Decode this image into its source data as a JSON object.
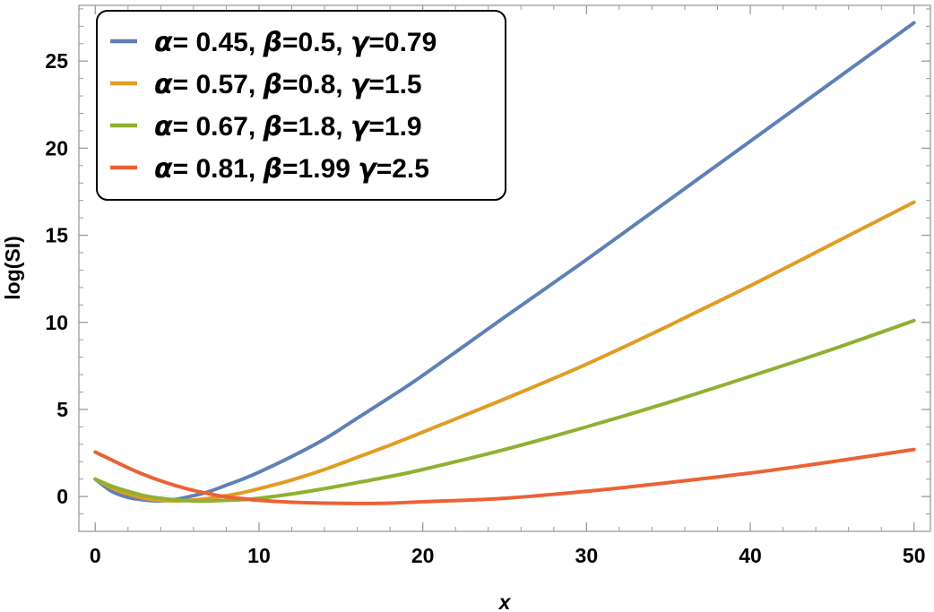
{
  "chart_data": {
    "type": "line",
    "title": "",
    "xlabel": "x",
    "ylabel": "log(SI)",
    "xlim": [
      -1,
      51
    ],
    "ylim": [
      -2,
      28.2
    ],
    "x_ticks": [
      0,
      10,
      20,
      30,
      40,
      50
    ],
    "x_tick_labels": [
      "0",
      "10",
      "20",
      "30",
      "40",
      "50"
    ],
    "y_ticks": [
      0,
      5,
      10,
      15,
      20,
      25
    ],
    "y_tick_labels": [
      "0",
      "5",
      "10",
      "15",
      "20",
      "25"
    ],
    "grid": false,
    "legend_position": "top-left",
    "x": [
      0,
      1,
      2,
      3,
      4,
      5,
      6,
      7,
      8,
      9,
      10,
      12,
      14,
      16,
      18,
      20,
      25,
      30,
      35,
      40,
      45,
      50
    ],
    "series": [
      {
        "name_parts": [
          "α",
          "= 0.45, ",
          "β",
          "=0.5, ",
          "γ",
          "=0.79"
        ],
        "color": "#5E81B5",
        "values": [
          1.0,
          0.3,
          -0.05,
          -0.2,
          -0.25,
          -0.15,
          0.05,
          0.3,
          0.65,
          1.0,
          1.4,
          2.3,
          3.3,
          4.5,
          5.7,
          6.95,
          10.3,
          13.6,
          17.0,
          20.4,
          23.8,
          27.2
        ]
      },
      {
        "name_parts": [
          "α",
          "= 0.57, ",
          "β",
          "=0.8, ",
          "γ",
          "=1.5"
        ],
        "color": "#E19C24",
        "values": [
          1.0,
          0.5,
          0.15,
          -0.1,
          -0.22,
          -0.25,
          -0.2,
          -0.1,
          0.05,
          0.22,
          0.45,
          0.95,
          1.55,
          2.25,
          2.95,
          3.7,
          5.6,
          7.6,
          9.8,
          12.1,
          14.5,
          16.9
        ]
      },
      {
        "name_parts": [
          "α",
          "= 0.67, ",
          "β",
          "=1.8, ",
          "γ",
          "=1.9"
        ],
        "color": "#8FB032",
        "values": [
          1.0,
          0.6,
          0.3,
          0.05,
          -0.1,
          -0.2,
          -0.25,
          -0.25,
          -0.22,
          -0.18,
          -0.1,
          0.15,
          0.45,
          0.8,
          1.15,
          1.55,
          2.7,
          4.0,
          5.4,
          6.9,
          8.45,
          10.1
        ]
      },
      {
        "name_parts": [
          "α",
          "= 0.81, ",
          "β",
          "=1.99 ",
          "γ",
          "=2.5"
        ],
        "color": "#EB6235",
        "values": [
          2.55,
          2.1,
          1.65,
          1.25,
          0.9,
          0.6,
          0.35,
          0.15,
          -0.02,
          -0.12,
          -0.22,
          -0.33,
          -0.38,
          -0.4,
          -0.38,
          -0.3,
          -0.1,
          0.3,
          0.8,
          1.35,
          2.0,
          2.7
        ]
      }
    ]
  }
}
